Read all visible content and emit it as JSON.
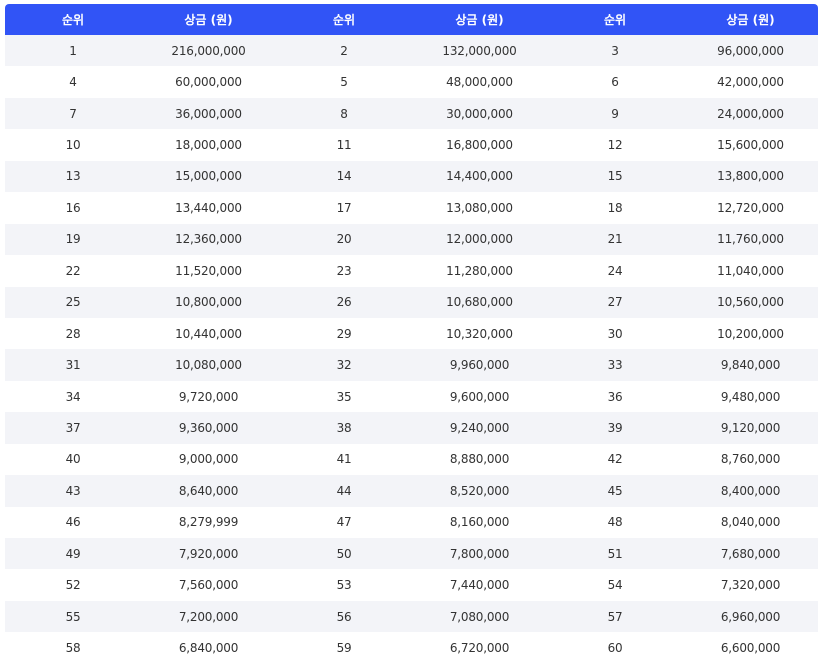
{
  "table": {
    "headers": [
      "순위",
      "상금 (원)",
      "순위",
      "상금 (원)",
      "순위",
      "상금 (원)"
    ],
    "rows": [
      [
        "1",
        "216,000,000",
        "2",
        "132,000,000",
        "3",
        "96,000,000"
      ],
      [
        "4",
        "60,000,000",
        "5",
        "48,000,000",
        "6",
        "42,000,000"
      ],
      [
        "7",
        "36,000,000",
        "8",
        "30,000,000",
        "9",
        "24,000,000"
      ],
      [
        "10",
        "18,000,000",
        "11",
        "16,800,000",
        "12",
        "15,600,000"
      ],
      [
        "13",
        "15,000,000",
        "14",
        "14,400,000",
        "15",
        "13,800,000"
      ],
      [
        "16",
        "13,440,000",
        "17",
        "13,080,000",
        "18",
        "12,720,000"
      ],
      [
        "19",
        "12,360,000",
        "20",
        "12,000,000",
        "21",
        "11,760,000"
      ],
      [
        "22",
        "11,520,000",
        "23",
        "11,280,000",
        "24",
        "11,040,000"
      ],
      [
        "25",
        "10,800,000",
        "26",
        "10,680,000",
        "27",
        "10,560,000"
      ],
      [
        "28",
        "10,440,000",
        "29",
        "10,320,000",
        "30",
        "10,200,000"
      ],
      [
        "31",
        "10,080,000",
        "32",
        "9,960,000",
        "33",
        "9,840,000"
      ],
      [
        "34",
        "9,720,000",
        "35",
        "9,600,000",
        "36",
        "9,480,000"
      ],
      [
        "37",
        "9,360,000",
        "38",
        "9,240,000",
        "39",
        "9,120,000"
      ],
      [
        "40",
        "9,000,000",
        "41",
        "8,880,000",
        "42",
        "8,760,000"
      ],
      [
        "43",
        "8,640,000",
        "44",
        "8,520,000",
        "45",
        "8,400,000"
      ],
      [
        "46",
        "8,279,999",
        "47",
        "8,160,000",
        "48",
        "8,040,000"
      ],
      [
        "49",
        "7,920,000",
        "50",
        "7,800,000",
        "51",
        "7,680,000"
      ],
      [
        "52",
        "7,560,000",
        "53",
        "7,440,000",
        "54",
        "7,320,000"
      ],
      [
        "55",
        "7,200,000",
        "56",
        "7,080,000",
        "57",
        "6,960,000"
      ],
      [
        "58",
        "6,840,000",
        "59",
        "6,720,000",
        "60",
        "6,600,000"
      ]
    ]
  },
  "colors": {
    "header_bg": "#3154f6",
    "header_text": "#ffffff",
    "row_stripe": "#f3f4f8",
    "row_plain": "#ffffff",
    "cell_text": "#333333"
  }
}
